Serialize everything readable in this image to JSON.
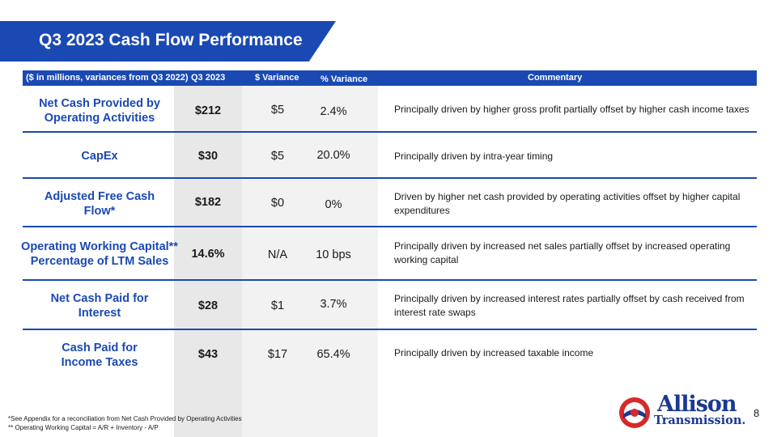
{
  "title": "Q3 2023 Cash Flow Performance",
  "header": {
    "units": "($ in millions, variances from Q3 2022)",
    "q3": "Q3 2023",
    "dollar_variance": "$ Variance",
    "pct_variance": "% Variance",
    "commentary": "Commentary"
  },
  "rows": [
    {
      "label": "Net Cash Provided by Operating Activities",
      "q3": "$212",
      "dollar": "$5",
      "pct": "2.4%",
      "comment": "Principally driven by higher gross profit partially offset by higher cash income taxes"
    },
    {
      "label": "CapEx",
      "q3": "$30",
      "dollar": "$5",
      "pct": "20.0%",
      "comment": "Principally driven by intra-year timing"
    },
    {
      "label": "Adjusted Free Cash Flow*",
      "q3": "$182",
      "dollar": "$0",
      "pct": "0%",
      "comment": "Driven by higher net cash provided by operating activities offset by higher capital expenditures"
    },
    {
      "label": "Operating Working Capital** Percentage of LTM Sales",
      "q3": "14.6%",
      "dollar": "N/A",
      "pct": "10 bps",
      "comment": "Principally driven by increased net sales partially offset by increased operating working capital"
    },
    {
      "label": "Net Cash Paid for Interest",
      "q3": "$28",
      "dollar": "$1",
      "pct": "3.7%",
      "comment": "Principally driven by increased interest rates partially offset by cash received from interest rate swaps"
    },
    {
      "label": "Cash Paid for Income Taxes",
      "q3": "$43",
      "dollar": "$17",
      "pct": "65.4%",
      "comment": "Principally driven by increased taxable income"
    }
  ],
  "footnotes": [
    "*See Appendix for a reconciliation from Net Cash Provided by Operating Activities",
    "** Operating Working Capital = A/R + Inventory - A/P"
  ],
  "logo": {
    "line1": "Allison",
    "line2": "Transmission."
  },
  "page_number": "8",
  "colors": {
    "brand_blue": "#1a49b3",
    "logo_red": "#d62a2a"
  }
}
